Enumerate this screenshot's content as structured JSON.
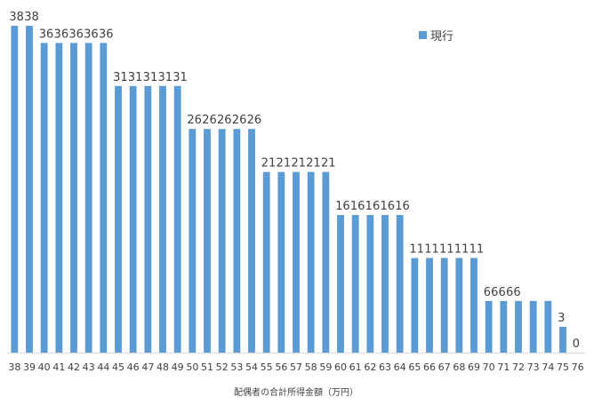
{
  "chart_data": {
    "type": "bar",
    "categories": [
      "38",
      "39",
      "40",
      "41",
      "42",
      "43",
      "44",
      "45",
      "46",
      "47",
      "48",
      "49",
      "50",
      "51",
      "52",
      "53",
      "54",
      "55",
      "56",
      "57",
      "58",
      "59",
      "60",
      "61",
      "62",
      "63",
      "64",
      "65",
      "66",
      "67",
      "68",
      "69",
      "70",
      "71",
      "72",
      "73",
      "74",
      "75",
      "76"
    ],
    "series": [
      {
        "name": "現行",
        "values": [
          38,
          38,
          36,
          36,
          36,
          36,
          36,
          31,
          31,
          31,
          31,
          31,
          26,
          26,
          26,
          26,
          26,
          21,
          21,
          21,
          21,
          21,
          16,
          16,
          16,
          16,
          16,
          11,
          11,
          11,
          11,
          11,
          6,
          6,
          6,
          6,
          6,
          3,
          0
        ],
        "color": "#5b9bd5"
      }
    ],
    "xlabel": "配偶者の合計所得金額（万円）",
    "ylabel": "",
    "ylim": [
      0,
      38
    ],
    "grid": false,
    "legend": "top-right",
    "data_labels": true
  }
}
